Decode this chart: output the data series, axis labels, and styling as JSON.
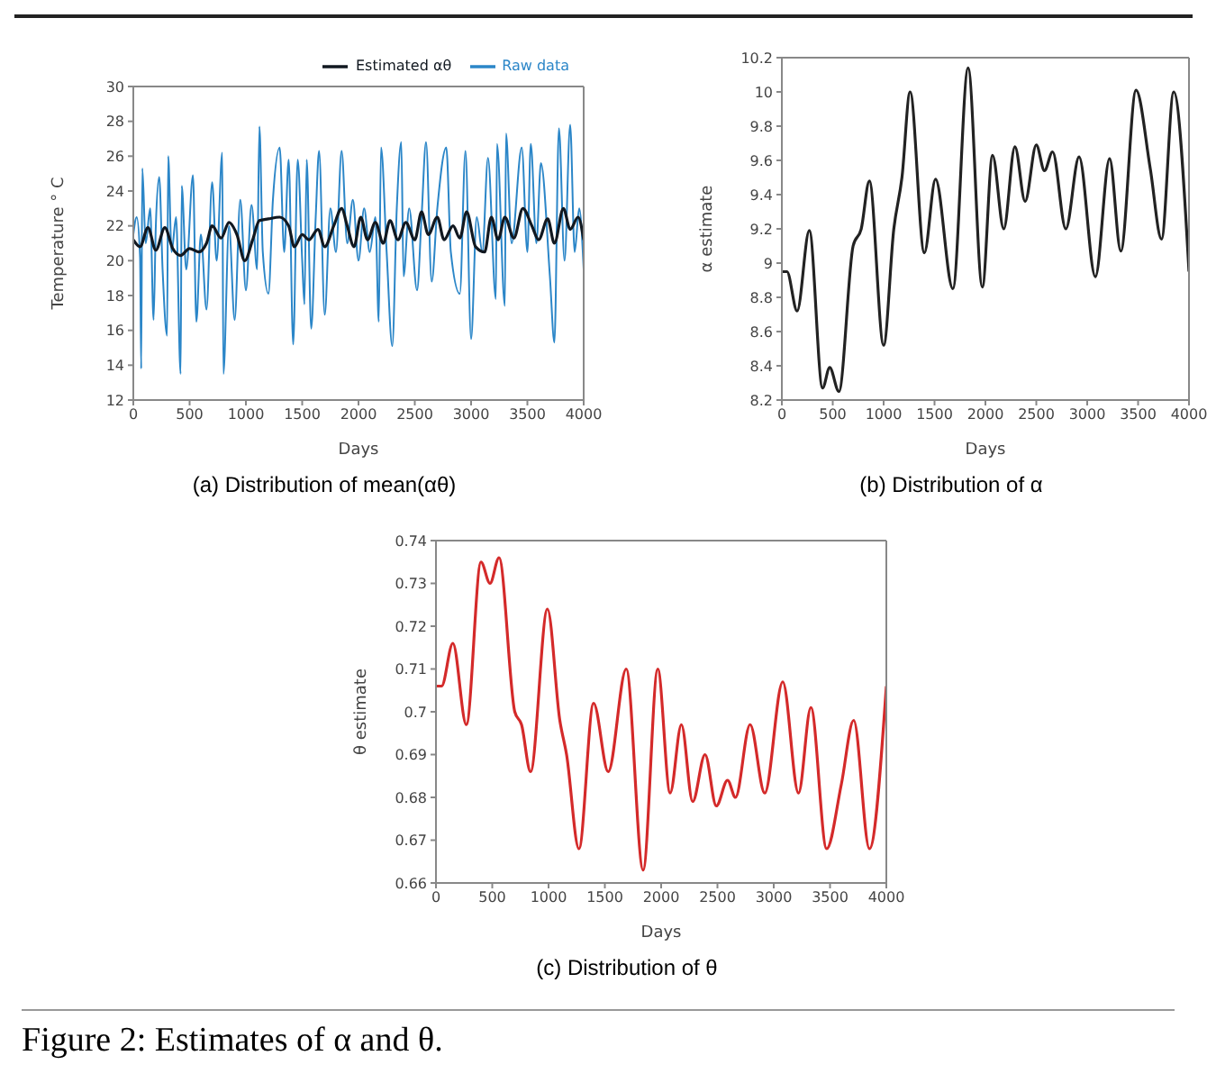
{
  "chart_data": [
    {
      "type": "line",
      "title": "(a) Distribution of mean(αθ)",
      "xlabel": "Days",
      "ylabel": "Temperature ° C",
      "xlim": [
        0,
        4000
      ],
      "xticks": [
        0,
        500,
        1000,
        1500,
        2000,
        2500,
        3000,
        3500,
        4000
      ],
      "ylim": [
        12,
        30
      ],
      "yticks": [
        12,
        14,
        16,
        18,
        20,
        22,
        24,
        26,
        28,
        30
      ],
      "legend": "top right",
      "series": [
        {
          "name": "Raw data",
          "color": "#2b86c8",
          "x": [
            0,
            30,
            60,
            70,
            80,
            110,
            150,
            180,
            200,
            230,
            260,
            300,
            310,
            340,
            380,
            420,
            430,
            470,
            530,
            560,
            600,
            650,
            700,
            740,
            790,
            800,
            850,
            900,
            950,
            1000,
            1050,
            1100,
            1120,
            1150,
            1200,
            1240,
            1300,
            1340,
            1380,
            1420,
            1460,
            1500,
            1520,
            1540,
            1580,
            1620,
            1650,
            1700,
            1750,
            1800,
            1850,
            1900,
            1950,
            2000,
            2050,
            2100,
            2150,
            2180,
            2200,
            2250,
            2300,
            2340,
            2380,
            2400,
            2450,
            2520,
            2560,
            2600,
            2650,
            2700,
            2780,
            2820,
            2900,
            2950,
            3000,
            3050,
            3100,
            3150,
            3220,
            3230,
            3300,
            3310,
            3360,
            3450,
            3500,
            3530,
            3580,
            3620,
            3700,
            3740,
            3780,
            3830,
            3880,
            3920,
            3960,
            4000
          ],
          "values": [
            21.5,
            22.5,
            20.2,
            13.8,
            25.3,
            21,
            23,
            16.6,
            22,
            24.8,
            19.5,
            15.7,
            26,
            20.5,
            22.5,
            13.5,
            24.3,
            19.5,
            24.9,
            16.5,
            21.5,
            17.2,
            24.5,
            20,
            26.2,
            13.5,
            22,
            16.6,
            23.5,
            18.3,
            23.2,
            19.5,
            27.7,
            20.5,
            18.1,
            23.5,
            26.5,
            20.5,
            25.8,
            15.2,
            25.8,
            20,
            17.5,
            25.8,
            16.1,
            22.5,
            26.3,
            16.9,
            23,
            20.5,
            26.3,
            21,
            23.5,
            20,
            23,
            20.5,
            22.5,
            16.5,
            26.5,
            20.5,
            15.1,
            23,
            26.8,
            19.1,
            23,
            18.3,
            22.5,
            26.8,
            18.8,
            23,
            26.5,
            20.5,
            18.1,
            26.3,
            15.5,
            22.5,
            20.5,
            25.9,
            17.8,
            26.7,
            17.4,
            27.3,
            21,
            26.5,
            20.5,
            26.7,
            21,
            25.6,
            19.1,
            15.3,
            27.6,
            20,
            27.8,
            20.5,
            23,
            19.5
          ]
        },
        {
          "name": "Estimated αθ",
          "color": "#111820",
          "x": [
            0,
            60,
            130,
            200,
            280,
            350,
            420,
            500,
            580,
            650,
            700,
            780,
            850,
            920,
            990,
            1060,
            1120,
            1200,
            1300,
            1380,
            1430,
            1500,
            1560,
            1640,
            1700,
            1780,
            1850,
            1900,
            1960,
            2020,
            2080,
            2150,
            2220,
            2280,
            2350,
            2420,
            2500,
            2560,
            2620,
            2700,
            2760,
            2840,
            2900,
            2960,
            3040,
            3120,
            3180,
            3240,
            3300,
            3380,
            3460,
            3540,
            3600,
            3680,
            3740,
            3820,
            3880,
            3950,
            4000
          ],
          "values": [
            21.2,
            20.8,
            21.9,
            20.6,
            21.9,
            20.7,
            20.3,
            20.7,
            20.5,
            21,
            22,
            21.3,
            22.2,
            21.5,
            20,
            21.2,
            22.3,
            22.4,
            22.5,
            22,
            20.8,
            21.5,
            21.2,
            21.8,
            20.8,
            22,
            23,
            22,
            20.8,
            22.5,
            21.2,
            22.2,
            21,
            22.3,
            21.2,
            22.2,
            21.2,
            22.8,
            21.5,
            22.5,
            21.2,
            22,
            21.3,
            22.8,
            20.8,
            20.5,
            22.5,
            21.2,
            22.5,
            21.3,
            23,
            22,
            21.2,
            22.4,
            21,
            23,
            21.8,
            22.5,
            21.2
          ]
        }
      ]
    },
    {
      "type": "line",
      "title": "(b) Distribution of α",
      "xlabel": "Days",
      "ylabel": "α estimate",
      "xlim": [
        0,
        4000
      ],
      "xticks": [
        0,
        500,
        1000,
        1500,
        2000,
        2500,
        3000,
        3500,
        4000
      ],
      "ylim": [
        8.2,
        10.2
      ],
      "yticks": [
        8.2,
        8.4,
        8.6,
        8.8,
        9,
        9.2,
        9.4,
        9.6,
        9.8,
        10,
        10.2
      ],
      "series": [
        {
          "color": "#222222",
          "x": [
            0,
            50,
            150,
            270,
            400,
            470,
            560,
            700,
            780,
            860,
            1000,
            1100,
            1180,
            1260,
            1400,
            1510,
            1680,
            1830,
            1970,
            2070,
            2180,
            2290,
            2390,
            2500,
            2580,
            2660,
            2790,
            2920,
            3080,
            3220,
            3330,
            3480,
            3620,
            3730,
            3850,
            4000
          ],
          "values": [
            8.95,
            8.95,
            8.72,
            9.19,
            8.27,
            8.39,
            8.25,
            9.1,
            9.2,
            9.48,
            8.52,
            9.2,
            9.5,
            10,
            9.06,
            9.49,
            8.85,
            10.14,
            8.86,
            9.63,
            9.2,
            9.68,
            9.36,
            9.69,
            9.54,
            9.65,
            9.2,
            9.62,
            8.92,
            9.61,
            9.07,
            10.01,
            9.55,
            9.14,
            10,
            8.95
          ]
        }
      ]
    },
    {
      "type": "line",
      "title": "(c) Distribution of θ",
      "xlabel": "Days",
      "ylabel": "θ estimate",
      "xlim": [
        0,
        4000
      ],
      "xticks": [
        0,
        500,
        1000,
        1500,
        2000,
        2500,
        3000,
        3500,
        4000
      ],
      "ylim": [
        0.66,
        0.74
      ],
      "yticks": [
        0.66,
        0.67,
        0.68,
        0.69,
        0.7,
        0.71,
        0.72,
        0.73,
        0.74
      ],
      "annotations": [
        "Figure 2: Estimates of α and θ."
      ],
      "series": [
        {
          "color": "#d42a2a",
          "x": [
            0,
            50,
            150,
            270,
            400,
            480,
            560,
            700,
            760,
            840,
            990,
            1100,
            1160,
            1270,
            1400,
            1530,
            1690,
            1840,
            1970,
            2080,
            2180,
            2280,
            2390,
            2490,
            2590,
            2660,
            2790,
            2920,
            3080,
            3220,
            3330,
            3470,
            3600,
            3710,
            3850,
            4000
          ],
          "values": [
            0.706,
            0.706,
            0.716,
            0.697,
            0.735,
            0.73,
            0.736,
            0.7,
            0.697,
            0.686,
            0.724,
            0.698,
            0.69,
            0.668,
            0.702,
            0.686,
            0.71,
            0.663,
            0.71,
            0.681,
            0.697,
            0.679,
            0.69,
            0.678,
            0.684,
            0.68,
            0.697,
            0.681,
            0.707,
            0.681,
            0.701,
            0.668,
            0.683,
            0.698,
            0.668,
            0.706
          ]
        }
      ]
    }
  ]
}
